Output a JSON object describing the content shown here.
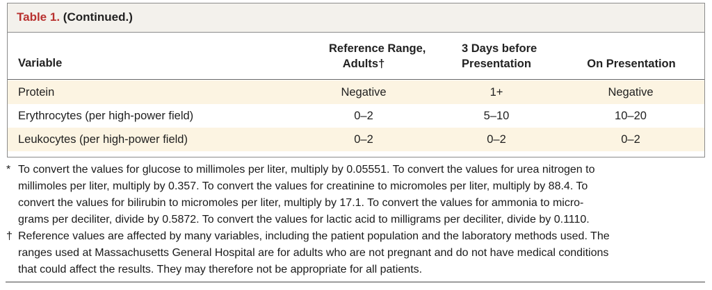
{
  "table": {
    "label": "Table 1.",
    "label_suffix": "(Continued.)",
    "headers": {
      "variable": "Variable",
      "reference_line1": "Reference Range,",
      "reference_line2": "Adults†",
      "days_before_line1": "3 Days before",
      "days_before_line2": "Presentation",
      "on_presentation": "On Presentation"
    },
    "rows": [
      {
        "variable": "Protein",
        "reference": "Negative",
        "days_before": "1+",
        "on_presentation": "Negative"
      },
      {
        "variable": "Erythrocytes (per high-power field)",
        "reference": "0–2",
        "days_before": "5–10",
        "on_presentation": "10–20"
      },
      {
        "variable": "Leukocytes (per high-power field)",
        "reference": "0–2",
        "days_before": "0–2",
        "on_presentation": "0–2"
      }
    ]
  },
  "footnotes": [
    {
      "mark": "*",
      "lines": [
        "To convert the values for glucose to millimoles per liter, multiply by 0.05551. To convert the values for urea nitrogen to",
        "millimoles per liter, multiply by 0.357. To convert the values for creatinine to micromoles per liter, multiply by 88.4. To",
        "convert the values for bilirubin to micromoles per liter, multiply by 17.1. To convert the values for ammonia to micro-",
        "grams per deciliter, divide by 0.5872. To convert the values for lactic acid to milligrams per deciliter, divide by 0.1110."
      ]
    },
    {
      "mark": "†",
      "lines": [
        "Reference values are affected by many variables, including the patient population and the laboratory methods used. The",
        "ranges used at Massachusetts General Hospital are for adults who are not pregnant and do not have medical conditions",
        "that could affect the results. They may therefore not be appropriate for all patients."
      ]
    }
  ],
  "colors": {
    "label_red": "#b8312f",
    "title_bar_bg": "#f3f1ec",
    "shaded_row_bg": "#fcf4e2"
  }
}
